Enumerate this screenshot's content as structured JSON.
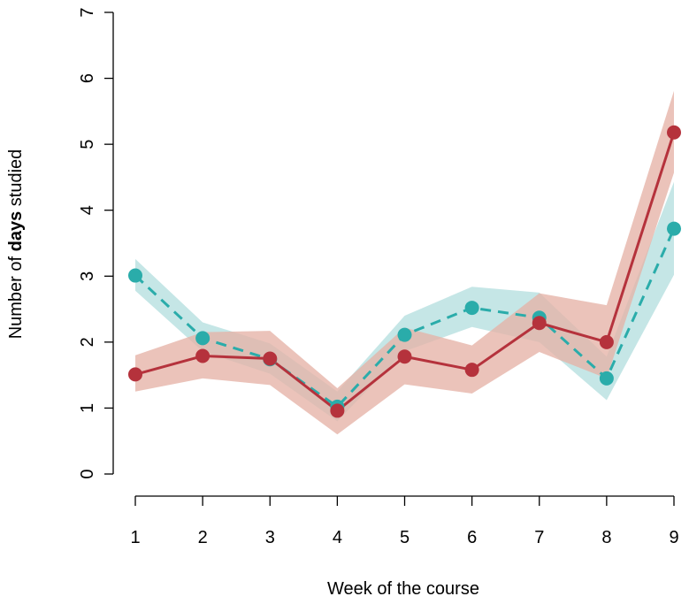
{
  "chart_data": {
    "type": "line",
    "xlabel": "Week of the course",
    "ylabel": {
      "prefix": "Number of ",
      "bold": "days",
      "suffix": " studied"
    },
    "x": [
      1,
      2,
      3,
      4,
      5,
      6,
      7,
      8,
      9
    ],
    "x_ticks": [
      "1",
      "2",
      "3",
      "4",
      "5",
      "6",
      "7",
      "8",
      "9"
    ],
    "y_ticks": [
      "0",
      "1",
      "2",
      "3",
      "4",
      "5",
      "6",
      "7"
    ],
    "xlim": [
      1,
      9
    ],
    "ylim": [
      0,
      7
    ],
    "grid": false,
    "series": [
      {
        "style": "dashed",
        "line_color": "#2aacaa",
        "band_color": "#bfe3e3",
        "values": [
          3.01,
          2.06,
          1.74,
          1.02,
          2.11,
          2.52,
          2.37,
          1.45,
          3.72
        ],
        "lower": [
          2.78,
          1.86,
          1.52,
          0.8,
          1.86,
          2.23,
          2.0,
          1.12,
          3.02
        ],
        "upper": [
          3.26,
          2.3,
          1.98,
          1.25,
          2.4,
          2.84,
          2.75,
          1.78,
          4.43
        ]
      },
      {
        "style": "solid",
        "line_color": "#b5323c",
        "band_color": "#e6b2a6",
        "values": [
          1.51,
          1.79,
          1.75,
          0.96,
          1.78,
          1.58,
          2.29,
          2.0,
          5.18
        ],
        "lower": [
          1.25,
          1.45,
          1.35,
          0.6,
          1.36,
          1.22,
          1.85,
          1.45,
          4.57
        ],
        "upper": [
          1.8,
          2.15,
          2.17,
          1.3,
          2.22,
          1.95,
          2.74,
          2.56,
          5.81
        ]
      }
    ]
  }
}
